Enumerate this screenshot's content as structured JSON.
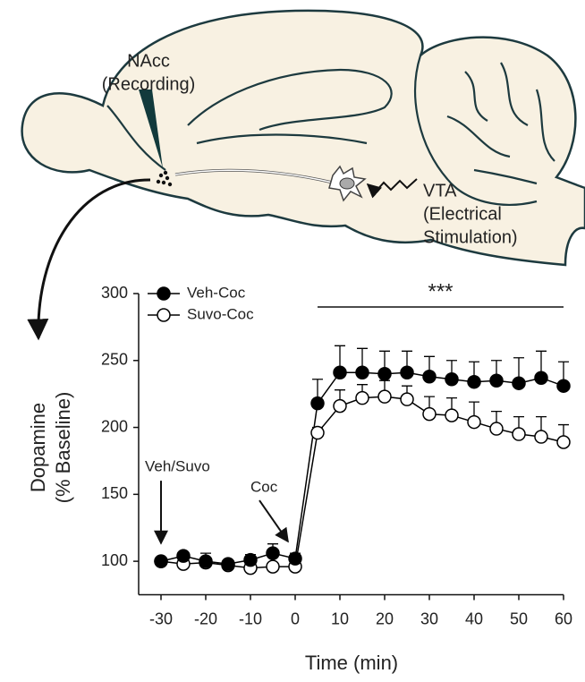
{
  "diagram_labels": [
    "NAcc",
    "(Recording)",
    "VTA",
    "(Electrical",
    "Stimulation)"
  ],
  "chart_data": {
    "type": "line",
    "x": [
      -30,
      -25,
      -20,
      -15,
      -10,
      -5,
      0,
      5,
      10,
      15,
      20,
      25,
      30,
      35,
      40,
      45,
      50,
      55,
      60
    ],
    "series": [
      {
        "name": "Veh-Coc",
        "color": "#000000",
        "marker": "filled",
        "values": [
          100,
          104,
          100,
          98,
          101,
          106,
          102,
          218,
          241,
          241,
          240,
          241,
          238,
          236,
          234,
          235,
          233,
          237,
          231
        ],
        "errors": [
          2,
          2,
          6,
          2,
          4,
          7,
          4,
          18,
          20,
          18,
          17,
          16,
          15,
          14,
          15,
          15,
          19,
          20,
          18
        ]
      },
      {
        "name": "Suvo-Coc",
        "color": "#000000",
        "marker": "open",
        "values": [
          100,
          98,
          99,
          97,
          95,
          96,
          96,
          196,
          216,
          222,
          223,
          221,
          210,
          209,
          204,
          199,
          195,
          193,
          189
        ],
        "errors": [
          2,
          2,
          3,
          2,
          3,
          3,
          2,
          4,
          12,
          10,
          12,
          10,
          13,
          13,
          15,
          13,
          13,
          15,
          13
        ]
      }
    ],
    "xlim": [
      -35,
      60
    ],
    "xticks": [
      -30,
      -20,
      -10,
      0,
      10,
      20,
      30,
      40,
      50,
      60
    ],
    "ylim": [
      75,
      300
    ],
    "yticks": [
      100,
      150,
      200,
      250,
      300
    ],
    "xlabel": "Time (min)",
    "ylabel": [
      "Dopamine",
      "(% Baseline)"
    ],
    "significance": {
      "label": "***",
      "x_start": 5,
      "x_end": 60,
      "y": 290
    },
    "annotations": [
      {
        "text": "Veh/Suvo",
        "x": -30
      },
      {
        "text": "Coc",
        "x": 0
      }
    ],
    "legend": "top-left"
  }
}
